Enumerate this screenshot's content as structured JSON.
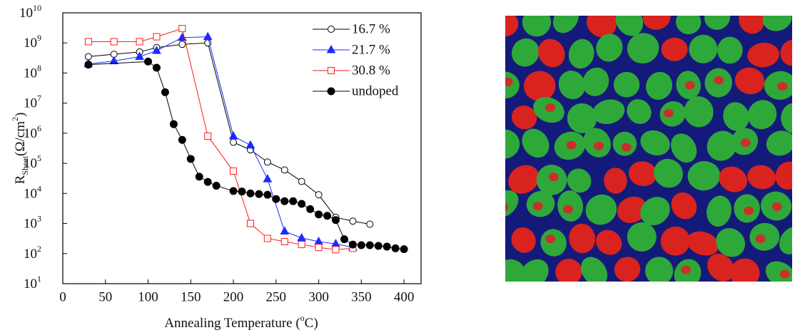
{
  "chart_data": {
    "type": "line",
    "x_label": {
      "text": "Annealing Temperature (",
      "sup": "o",
      "end": "C)"
    },
    "y_label": {
      "base": "R",
      "sub": "Sheet",
      "text": "(Ω/cm",
      "sup": "2",
      "end": ")"
    },
    "log_y": true,
    "legend": "upper right",
    "xlim": [
      0,
      420
    ],
    "xticks": [
      0,
      50,
      100,
      150,
      200,
      250,
      300,
      350,
      400
    ],
    "ylim": [
      10,
      10000000000
    ],
    "yticks": [
      {
        "value": 10,
        "label": "10",
        "exponent": "1"
      },
      {
        "value": 100,
        "label": "10",
        "exponent": "2"
      },
      {
        "value": 1000,
        "label": "10",
        "exponent": "3"
      },
      {
        "value": 10000,
        "label": "10",
        "exponent": "4"
      },
      {
        "value": 100000,
        "label": "10",
        "exponent": "5"
      },
      {
        "value": 1000000,
        "label": "10",
        "exponent": "6"
      },
      {
        "value": 10000000,
        "label": "10",
        "exponent": "7"
      },
      {
        "value": 100000000,
        "label": "10",
        "exponent": "8"
      },
      {
        "value": 1000000000,
        "label": "10",
        "exponent": "9"
      },
      {
        "value": 10000000000,
        "label": "10",
        "exponent": "10"
      }
    ],
    "series": [
      {
        "name": "16.7 %",
        "color": "#000000",
        "marker": "circle",
        "filled": false,
        "x": [
          30,
          60,
          90,
          110,
          140,
          170,
          200,
          220,
          240,
          260,
          280,
          300,
          320,
          340,
          360
        ],
        "values": [
          350000000,
          420000000,
          500000000,
          700000000,
          900000000,
          1000000000,
          500000,
          280000,
          110000,
          60000,
          25000,
          9000,
          1600,
          1200,
          950
        ]
      },
      {
        "name": "21.7 %",
        "color": "#1a2bff",
        "marker": "triangle",
        "filled": true,
        "x": [
          30,
          60,
          90,
          110,
          140,
          170,
          200,
          220,
          240,
          260,
          280,
          300,
          320,
          340
        ],
        "values": [
          200000000,
          250000000,
          350000000,
          550000000,
          1500000000,
          1600000000,
          800000,
          400000,
          30000,
          550,
          330,
          250,
          210,
          160
        ]
      },
      {
        "name": "30.8 %",
        "color": "#ff1a1a",
        "marker": "square",
        "filled": false,
        "x": [
          30,
          60,
          90,
          110,
          140,
          170,
          200,
          220,
          240,
          260,
          280,
          300,
          320,
          340
        ],
        "values": [
          1100000000,
          1100000000,
          1100000000,
          1600000000,
          3000000000,
          800000,
          55000,
          1000,
          320,
          250,
          200,
          160,
          135,
          150
        ]
      },
      {
        "name": "undoped",
        "color": "#000000",
        "marker": "circle",
        "filled": true,
        "x": [
          30,
          100,
          110,
          120,
          130,
          140,
          150,
          160,
          170,
          180,
          200,
          210,
          220,
          230,
          240,
          250,
          260,
          270,
          280,
          290,
          300,
          310,
          320,
          330,
          340,
          350,
          360,
          370,
          380,
          390,
          400
        ],
        "values": [
          190000000,
          240000000,
          150000000,
          23000000,
          2000000,
          600000,
          140000,
          36000,
          24000,
          18000,
          12000,
          11500,
          10000,
          9500,
          9000,
          6500,
          5500,
          5500,
          4500,
          3000,
          2000,
          1800,
          1300,
          300,
          200,
          190,
          190,
          180,
          170,
          150,
          140
        ]
      }
    ]
  }
}
